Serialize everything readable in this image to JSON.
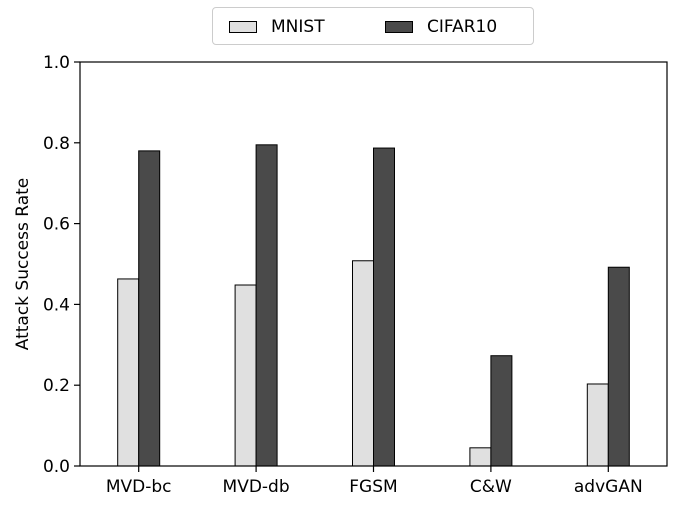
{
  "chart_data": {
    "type": "bar",
    "categories": [
      "MVD-bc",
      "MVD-db",
      "FGSM",
      "C&W",
      "advGAN"
    ],
    "series": [
      {
        "name": "MNIST",
        "color": "#e0e0e0",
        "values": [
          0.463,
          0.448,
          0.508,
          0.045,
          0.203
        ]
      },
      {
        "name": "CIFAR10",
        "color": "#4a4a4a",
        "values": [
          0.78,
          0.795,
          0.787,
          0.273,
          0.492
        ]
      }
    ],
    "title": "",
    "xlabel": "",
    "ylabel": "Attack Success Rate",
    "ylim": [
      0,
      1.0
    ],
    "yticks": [
      "0.0",
      "0.2",
      "0.4",
      "0.6",
      "0.8",
      "1.0"
    ],
    "grid": false,
    "legend_position": "top-center"
  }
}
